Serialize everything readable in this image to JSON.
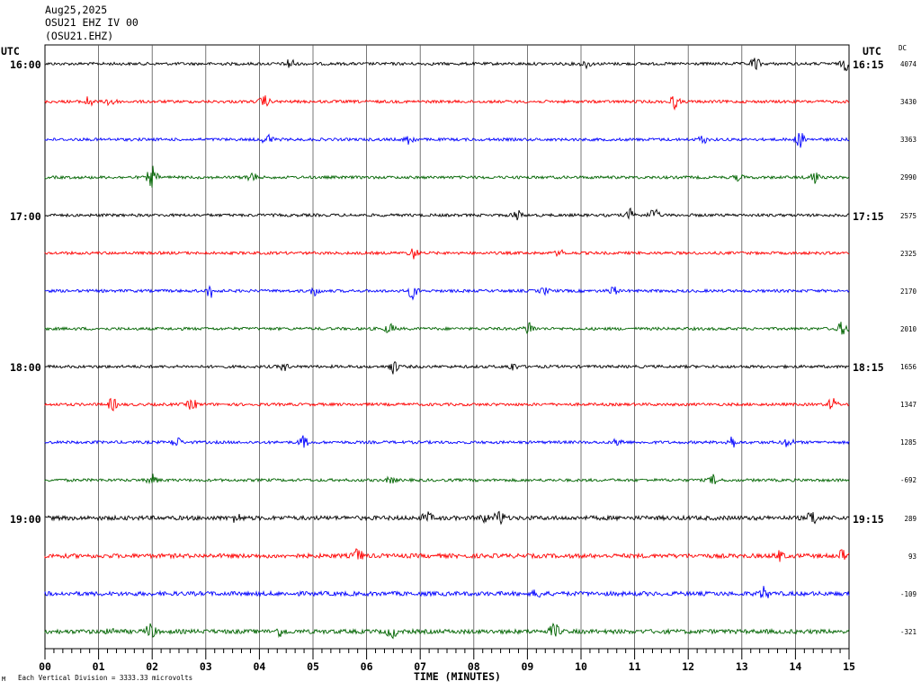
{
  "header": {
    "date": "Aug25,2025",
    "station_line": "OSU21 EHZ IV 00",
    "station_code": "(OSU21.EHZ)"
  },
  "utc_label_left": "UTC",
  "utc_label_right": "UTC",
  "dc_label": "DC",
  "chart_data": {
    "type": "line",
    "title": "",
    "xlabel": "TIME (MINUTES)",
    "x_ticks": [
      "00",
      "01",
      "02",
      "03",
      "04",
      "05",
      "06",
      "07",
      "08",
      "09",
      "10",
      "11",
      "12",
      "13",
      "14",
      "15"
    ],
    "xlim": [
      0,
      15
    ],
    "grid": true,
    "left_time_labels": [
      {
        "row": 0,
        "text": "16:00"
      },
      {
        "row": 4,
        "text": "17:00"
      },
      {
        "row": 8,
        "text": "18:00"
      },
      {
        "row": 12,
        "text": "19:00"
      }
    ],
    "right_time_labels": [
      {
        "row": 0,
        "text": "16:15"
      },
      {
        "row": 4,
        "text": "17:15"
      },
      {
        "row": 8,
        "text": "18:15"
      },
      {
        "row": 12,
        "text": "19:15"
      }
    ],
    "trace_colors": [
      "#000000",
      "#ff0000",
      "#0000ff",
      "#006400"
    ],
    "dc_offsets": [
      "4074",
      "3430",
      "3363",
      "2990",
      "2575",
      "2325",
      "2170",
      "2010",
      "1656",
      "1347",
      "1285",
      "-692",
      "289",
      "93",
      "-109",
      "-321"
    ],
    "trace_count": 16
  },
  "footer": {
    "scale_note": "Each Vertical Division = 3333.33 microvolts",
    "mark": "M"
  }
}
